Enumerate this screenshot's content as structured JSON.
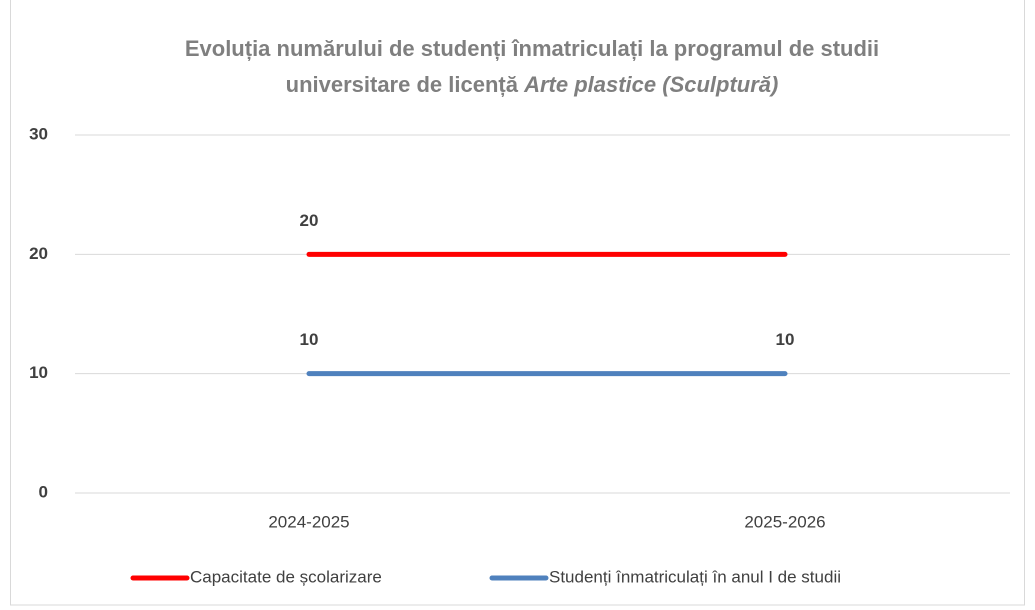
{
  "chart_data": {
    "type": "line",
    "title": [
      "Evoluția numărului de studenți înmatriculați la programul de studii",
      "universitare de licență"
    ],
    "title_italic": "Arte plastice (Sculptură)",
    "categories": [
      "2024-2025",
      "2025-2026"
    ],
    "series": [
      {
        "name": "Capacitate de școlarizare",
        "color": "#ff0000",
        "values": [
          20,
          20
        ],
        "value_labels": [
          "20",
          null
        ]
      },
      {
        "name": "Studenți înmatriculați în anul I de studii",
        "color": "#4f81bd",
        "values": [
          10,
          10
        ],
        "value_labels": [
          "10",
          "10"
        ]
      }
    ],
    "ylim": [
      0,
      30
    ],
    "yticks": [
      0,
      10,
      20,
      30
    ],
    "grid": true,
    "legend": "bottom"
  }
}
